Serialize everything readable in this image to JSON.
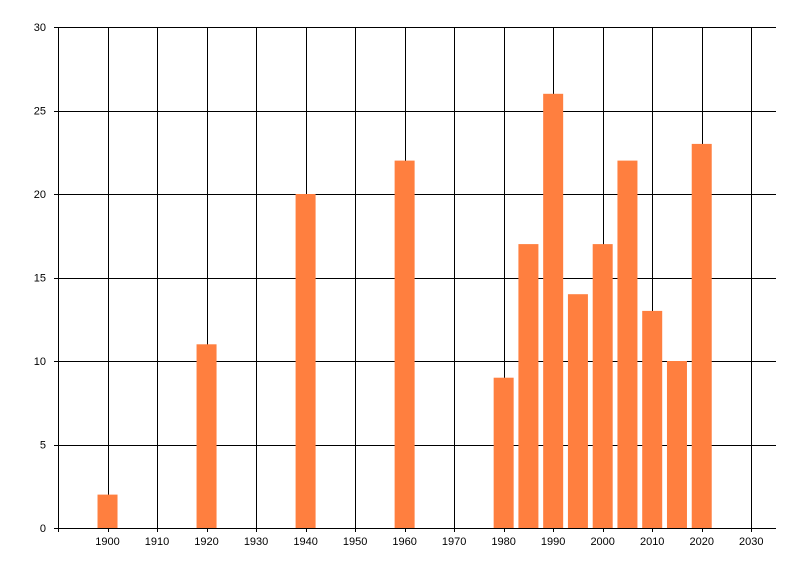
{
  "chart_data": {
    "type": "bar",
    "x": [
      1900,
      1920,
      1940,
      1960,
      1980,
      1985,
      1990,
      1995,
      2000,
      2005,
      2010,
      2015,
      2020
    ],
    "values": [
      2,
      11,
      20,
      22,
      9,
      17,
      26,
      14,
      17,
      22,
      13,
      10,
      23
    ],
    "xlim": [
      1890,
      2035
    ],
    "ylim": [
      0,
      30
    ],
    "x_ticks": [
      1900,
      1910,
      1920,
      1930,
      1940,
      1950,
      1960,
      1970,
      1980,
      1990,
      2000,
      2010,
      2020,
      2030
    ],
    "y_ticks": [
      0,
      5,
      10,
      15,
      20,
      25,
      30
    ],
    "x_tick_labels": [
      "1900",
      "1910",
      "1920",
      "1930",
      "1940",
      "1950",
      "1960",
      "1970",
      "1980",
      "1990",
      "2000",
      "2010",
      "2020",
      "2030"
    ],
    "y_tick_labels": [
      "0",
      "5",
      "10",
      "15",
      "20",
      "25",
      "30"
    ],
    "grid": true,
    "bar_color": "#ff7f3f",
    "grid_color": "#000000",
    "title": "",
    "xlabel": "",
    "ylabel": ""
  }
}
